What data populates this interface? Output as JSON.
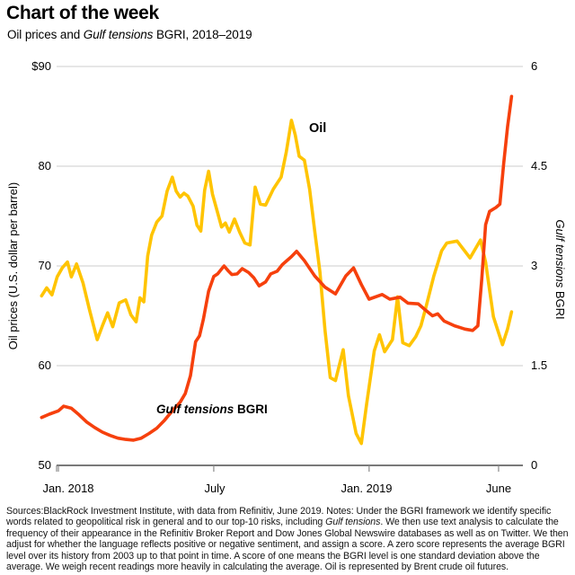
{
  "header": {
    "title": "Chart of the week",
    "subtitle_segments": [
      {
        "text": "Oil prices and "
      },
      {
        "text": "Gulf tensions",
        "italic": true
      },
      {
        "text": " BGRI, 2018–2019"
      }
    ]
  },
  "chart_data": {
    "type": "line",
    "title": "Oil prices and Gulf tensions BGRI, 2018–2019",
    "grid": "horizontal",
    "x_axis": {
      "unit": "months since Jan 2018",
      "ticks": [
        {
          "m": 0,
          "label": "Jan. 2018"
        },
        {
          "m": 6,
          "label": "July"
        },
        {
          "m": 12,
          "label": "Jan. 2019"
        },
        {
          "m": 17,
          "label": "June"
        }
      ]
    },
    "left_axis": {
      "title": "Oil prices (U.S. dollar per barrel)",
      "range": [
        50,
        90
      ],
      "tick_values": [
        90,
        80,
        70,
        60,
        50
      ],
      "tick_labels": [
        "$90",
        "80",
        "70",
        "60",
        "50"
      ]
    },
    "right_axis": {
      "title_italic": "Gulf tensions",
      "title_rest": " BGRI",
      "range": [
        0,
        6
      ],
      "tick_values": [
        6,
        4.5,
        3,
        1.5,
        0
      ],
      "tick_labels": [
        "6",
        "4.5",
        "3",
        "1.5",
        "0"
      ]
    },
    "series": [
      {
        "name": "Oil",
        "label": "Oil",
        "axis": "left",
        "color": "#FFC400",
        "points": [
          [
            -0.65,
            67.0
          ],
          [
            -0.45,
            67.8
          ],
          [
            -0.25,
            67.1
          ],
          [
            -0.05,
            68.9
          ],
          [
            0.15,
            69.8
          ],
          [
            0.35,
            70.4
          ],
          [
            0.5,
            68.9
          ],
          [
            0.7,
            70.2
          ],
          [
            0.95,
            68.3
          ],
          [
            1.2,
            65.6
          ],
          [
            1.5,
            62.6
          ],
          [
            1.7,
            64.0
          ],
          [
            1.9,
            65.3
          ],
          [
            2.1,
            63.9
          ],
          [
            2.35,
            66.3
          ],
          [
            2.6,
            66.6
          ],
          [
            2.8,
            65.1
          ],
          [
            3.0,
            64.4
          ],
          [
            3.15,
            66.8
          ],
          [
            3.3,
            66.4
          ],
          [
            3.45,
            71.0
          ],
          [
            3.6,
            73.1
          ],
          [
            3.8,
            74.4
          ],
          [
            4.0,
            75.0
          ],
          [
            4.2,
            77.5
          ],
          [
            4.4,
            78.9
          ],
          [
            4.55,
            77.5
          ],
          [
            4.7,
            76.9
          ],
          [
            4.85,
            77.3
          ],
          [
            5.0,
            77.0
          ],
          [
            5.2,
            76.0
          ],
          [
            5.35,
            74.1
          ],
          [
            5.5,
            73.5
          ],
          [
            5.65,
            77.6
          ],
          [
            5.8,
            79.5
          ],
          [
            5.95,
            77.2
          ],
          [
            6.1,
            75.8
          ],
          [
            6.3,
            73.9
          ],
          [
            6.45,
            74.3
          ],
          [
            6.6,
            73.4
          ],
          [
            6.8,
            74.7
          ],
          [
            7.0,
            73.4
          ],
          [
            7.2,
            72.3
          ],
          [
            7.4,
            72.1
          ],
          [
            7.6,
            77.9
          ],
          [
            7.8,
            76.2
          ],
          [
            8.0,
            76.1
          ],
          [
            8.3,
            77.7
          ],
          [
            8.6,
            78.9
          ],
          [
            8.8,
            81.4
          ],
          [
            9.0,
            84.6
          ],
          [
            9.15,
            83.1
          ],
          [
            9.3,
            81.0
          ],
          [
            9.5,
            80.6
          ],
          [
            9.7,
            77.7
          ],
          [
            9.9,
            73.5
          ],
          [
            10.1,
            69.4
          ],
          [
            10.3,
            63.5
          ],
          [
            10.5,
            58.8
          ],
          [
            10.7,
            58.5
          ],
          [
            11.0,
            61.6
          ],
          [
            11.2,
            57.0
          ],
          [
            11.5,
            53.2
          ],
          [
            11.7,
            52.2
          ],
          [
            11.9,
            56.1
          ],
          [
            12.2,
            61.5
          ],
          [
            12.4,
            63.1
          ],
          [
            12.6,
            61.4
          ],
          [
            12.9,
            62.6
          ],
          [
            13.1,
            66.9
          ],
          [
            13.3,
            62.3
          ],
          [
            13.55,
            62.0
          ],
          [
            13.8,
            62.9
          ],
          [
            14.0,
            64.0
          ],
          [
            14.2,
            65.9
          ],
          [
            14.5,
            69.0
          ],
          [
            14.8,
            71.5
          ],
          [
            15.0,
            72.3
          ],
          [
            15.4,
            72.5
          ],
          [
            15.9,
            70.8
          ],
          [
            16.3,
            72.6
          ],
          [
            16.5,
            70.4
          ],
          [
            16.65,
            67.6
          ],
          [
            16.8,
            64.9
          ],
          [
            16.95,
            63.7
          ],
          [
            17.15,
            62.1
          ],
          [
            17.35,
            63.7
          ],
          [
            17.5,
            65.4
          ]
        ]
      },
      {
        "name": "Gulf tensions BGRI",
        "label_italic": "Gulf tensions",
        "label_rest": " BGRI",
        "axis": "right",
        "color": "#F6400D",
        "points": [
          [
            -0.65,
            0.72
          ],
          [
            -0.35,
            0.77
          ],
          [
            0.0,
            0.82
          ],
          [
            0.2,
            0.89
          ],
          [
            0.5,
            0.86
          ],
          [
            0.8,
            0.76
          ],
          [
            1.1,
            0.65
          ],
          [
            1.4,
            0.57
          ],
          [
            1.7,
            0.5
          ],
          [
            2.0,
            0.45
          ],
          [
            2.3,
            0.41
          ],
          [
            2.6,
            0.39
          ],
          [
            2.9,
            0.38
          ],
          [
            3.2,
            0.41
          ],
          [
            3.5,
            0.48
          ],
          [
            3.8,
            0.56
          ],
          [
            4.1,
            0.68
          ],
          [
            4.4,
            0.82
          ],
          [
            4.7,
            0.95
          ],
          [
            4.9,
            1.08
          ],
          [
            5.1,
            1.35
          ],
          [
            5.3,
            1.86
          ],
          [
            5.45,
            1.95
          ],
          [
            5.6,
            2.2
          ],
          [
            5.8,
            2.62
          ],
          [
            6.0,
            2.84
          ],
          [
            6.15,
            2.88
          ],
          [
            6.4,
            3.0
          ],
          [
            6.55,
            2.93
          ],
          [
            6.7,
            2.87
          ],
          [
            6.9,
            2.88
          ],
          [
            7.1,
            2.96
          ],
          [
            7.35,
            2.9
          ],
          [
            7.55,
            2.82
          ],
          [
            7.75,
            2.7
          ],
          [
            8.0,
            2.76
          ],
          [
            8.2,
            2.88
          ],
          [
            8.45,
            2.92
          ],
          [
            8.65,
            3.02
          ],
          [
            9.0,
            3.14
          ],
          [
            9.2,
            3.22
          ],
          [
            9.5,
            3.08
          ],
          [
            9.9,
            2.85
          ],
          [
            10.3,
            2.68
          ],
          [
            10.7,
            2.58
          ],
          [
            11.1,
            2.85
          ],
          [
            11.4,
            2.97
          ],
          [
            11.7,
            2.72
          ],
          [
            12.0,
            2.5
          ],
          [
            12.5,
            2.57
          ],
          [
            12.8,
            2.5
          ],
          [
            13.2,
            2.53
          ],
          [
            13.5,
            2.44
          ],
          [
            13.9,
            2.43
          ],
          [
            14.2,
            2.33
          ],
          [
            14.45,
            2.25
          ],
          [
            14.65,
            2.28
          ],
          [
            14.9,
            2.17
          ],
          [
            15.3,
            2.1
          ],
          [
            15.7,
            2.05
          ],
          [
            16.0,
            2.03
          ],
          [
            16.2,
            2.1
          ],
          [
            16.35,
            2.8
          ],
          [
            16.5,
            3.62
          ],
          [
            16.65,
            3.82
          ],
          [
            16.9,
            3.88
          ],
          [
            17.05,
            3.93
          ],
          [
            17.2,
            4.55
          ],
          [
            17.35,
            5.1
          ],
          [
            17.5,
            5.55
          ]
        ]
      }
    ]
  },
  "footer": {
    "segments": [
      {
        "text": "Sources:BlackRock Investment Institute, with data from Refinitiv, June 2019. Notes: Under the BGRI framework we identify specific words related to geopolitical risk in general and to our top-10 risks, including "
      },
      {
        "text": "Gulf tensions",
        "italic": true
      },
      {
        "text": ". We then use text analysis to calculate the frequency of their appearance in the Refinitiv Broker Report and Dow Jones Global Newswire databases as well as on Twitter. We then adjust for whether the language reflects positive or negative sentiment, and assign a score. A zero score represents the average BGRI level over its history from 2003 up to that point in time. A score of one means the BGRI level is one standard deviation above the average. We weigh recent readings more heavily in calculating the average. Oil is represented by Brent crude oil futures."
      }
    ]
  }
}
